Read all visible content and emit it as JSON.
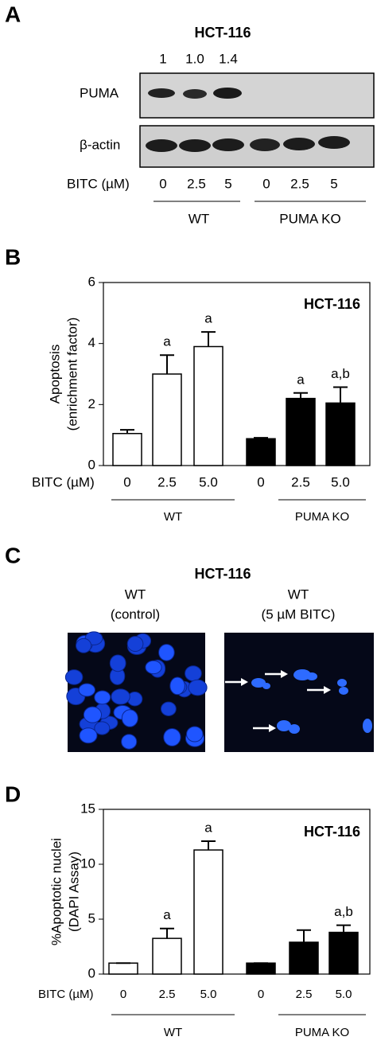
{
  "panel_a": {
    "panel": "A",
    "title": "HCT-116",
    "ratios": [
      "1",
      "1.0",
      "1.4"
    ],
    "rows": [
      "PUMA",
      "β-actin"
    ],
    "x_label": "BITC (µM)",
    "doses": [
      "0",
      "2.5",
      "5",
      "0",
      "2.5",
      "5"
    ],
    "groups": [
      "WT",
      "PUMA KO"
    ]
  },
  "panel_c": {
    "panel": "C",
    "title": "HCT-116",
    "images": [
      [
        "WT",
        "(control)"
      ],
      [
        "WT",
        "(5 µM BITC)"
      ]
    ]
  },
  "chart_data": [
    {
      "type": "bar",
      "panel": "B",
      "title": "HCT-116",
      "y_label": [
        "Apoptosis",
        "(enrichment factor)"
      ],
      "x_label": "BITC (µM)",
      "categories": [
        "0",
        "2.5",
        "5.0",
        "0",
        "2.5",
        "5.0"
      ],
      "series": [
        {
          "name": "WT",
          "color": "#ffffff",
          "values": [
            1.05,
            3.0,
            3.9,
            null,
            null,
            null
          ],
          "errors": [
            0.12,
            0.62,
            0.48,
            null,
            null,
            null
          ],
          "annotations": [
            null,
            "a",
            "a",
            null,
            null,
            null
          ]
        },
        {
          "name": "PUMA KO",
          "color": "#000000",
          "values": [
            null,
            null,
            null,
            0.88,
            2.2,
            2.05
          ],
          "errors": [
            null,
            null,
            null,
            0.03,
            0.18,
            0.52
          ],
          "annotations": [
            null,
            null,
            null,
            null,
            "a",
            "a,b"
          ]
        }
      ],
      "ylim": [
        0,
        6
      ],
      "yticks": [
        0,
        2,
        4,
        6
      ]
    },
    {
      "type": "bar",
      "panel": "D",
      "title": "HCT-116",
      "y_label": [
        "%Apoptotic nuclei",
        "(DAPI Assay)"
      ],
      "x_label": "BITC (µM)",
      "categories": [
        "0",
        "2.5",
        "5.0",
        "0",
        "2.5",
        "5.0"
      ],
      "series": [
        {
          "name": "WT",
          "color": "#ffffff",
          "values": [
            1.0,
            3.25,
            11.3,
            null,
            null,
            null
          ],
          "errors": [
            0,
            0.9,
            0.8,
            null,
            null,
            null
          ],
          "annotations": [
            null,
            "a",
            "a",
            null,
            null,
            null
          ]
        },
        {
          "name": "PUMA KO",
          "color": "#000000",
          "values": [
            null,
            null,
            null,
            1.0,
            2.9,
            3.8
          ],
          "errors": [
            null,
            null,
            null,
            0,
            1.1,
            0.65
          ],
          "annotations": [
            null,
            null,
            null,
            null,
            null,
            "a,b"
          ]
        }
      ],
      "ylim": [
        0,
        15
      ],
      "yticks": [
        0,
        5,
        10,
        15
      ]
    }
  ]
}
